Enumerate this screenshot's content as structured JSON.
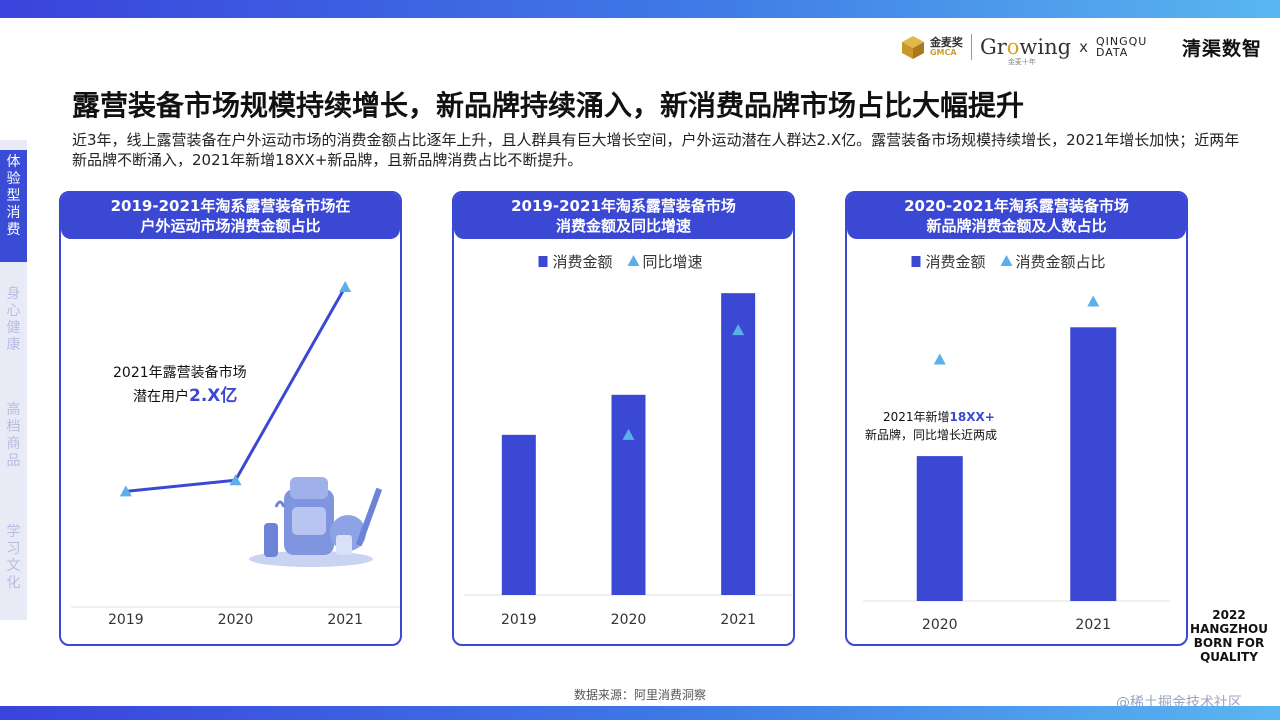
{
  "header": {
    "logo_jmj_name": "金麦奖",
    "logo_jmj_sub": "GMCA",
    "logo_growing": "Growing",
    "logo_growing_sub": "金麦十年",
    "logo_x": "x",
    "logo_qq": "QINGQU DATA",
    "logo_qq_cn": "清渠数智"
  },
  "title": "露营装备市场规模持续增长，新品牌持续涌入，新消费品牌市场占比大幅提升",
  "description": "近3年，线上露营装备在户外运动市场的消费金额占比逐年上升，且人群具有巨大增长空间，户外运动潜在人群达2.X亿。露营装备市场规模持续增长，2021年增长加快；近两年新品牌不断涌入，2021年新增18XX+新品牌，且新品牌消费占比不断提升。",
  "sidebar": {
    "items": [
      {
        "label": "体验型消费",
        "active": true
      },
      {
        "label": "身心健康",
        "active": false
      },
      {
        "label": "高档商品",
        "active": false
      },
      {
        "label": "学习文化",
        "active": false
      }
    ]
  },
  "panels": [
    {
      "title_l1": "2019-2021年淘系露营装备市场在",
      "title_l2": "户外运动市场消费金额占比"
    },
    {
      "title_l1": "2019-2021年淘系露营装备市场",
      "title_l2": "消费金额及同比增速"
    },
    {
      "title_l1": "2020-2021年淘系露营装备市场",
      "title_l2": "新品牌消费金额及人数占比"
    }
  ],
  "chart_data": [
    {
      "type": "line",
      "title": "2019-2021年淘系露营装备市场在户外运动市场消费金额占比",
      "categories": [
        "2019",
        "2020",
        "2021"
      ],
      "series": [
        {
          "values": [
            0.17,
            0.21,
            0.9
          ]
        }
      ],
      "ylim": [
        0,
        1
      ],
      "annotation": {
        "line1": "2021年露营装备市场",
        "line2_prefix": "潜在用户",
        "line2_highlight": "2.X亿"
      },
      "illustration": "camping-gear-illustration",
      "colors": {
        "line": "#3a48d4",
        "marker": "#5ab0e8"
      }
    },
    {
      "type": "bar",
      "title": "2019-2021年淘系露营装备市场消费金额及同比增速",
      "categories": [
        "2019",
        "2020",
        "2021"
      ],
      "series": [
        {
          "name": "消费金额",
          "type": "bar",
          "values": [
            0.52,
            0.65,
            0.98
          ]
        },
        {
          "name": "同比增速",
          "type": "marker",
          "values": [
            null,
            0.52,
            0.86
          ]
        }
      ],
      "ylim": [
        0,
        1
      ],
      "legend": "top",
      "colors": {
        "bar": "#3a48d4",
        "marker": "#5ab0e8"
      }
    },
    {
      "type": "bar",
      "title": "2020-2021年淘系露营装备市场新品牌消费金额及人数占比",
      "categories": [
        "2020",
        "2021"
      ],
      "series": [
        {
          "name": "消费金额",
          "type": "bar",
          "values": [
            0.45,
            0.85
          ]
        },
        {
          "name": "消费金额占比",
          "type": "marker",
          "values": [
            0.75,
            0.93
          ]
        }
      ],
      "ylim": [
        0,
        1
      ],
      "legend": "top",
      "annotation": {
        "line1_prefix": "2021年新增",
        "line1_highlight": "18XX+",
        "line2": "新品牌，同比增长近两成"
      },
      "colors": {
        "bar": "#3a48d4",
        "marker": "#5ab0e8"
      }
    }
  ],
  "footer": {
    "source": "数据来源：阿里消费洞察",
    "slogan": [
      "2022",
      "HANGZHOU",
      "BORN FOR",
      "QUALITY"
    ],
    "watermark": "@稀土掘金技术社区"
  }
}
